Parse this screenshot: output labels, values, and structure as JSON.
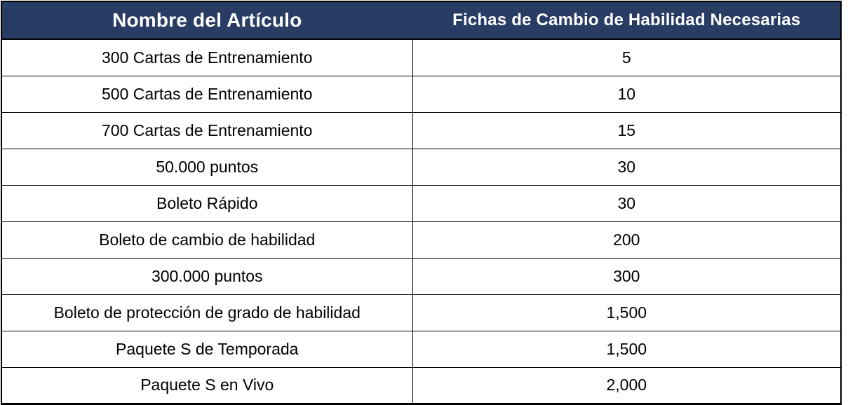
{
  "table": {
    "header": {
      "item_label": "Nombre del Artículo",
      "tokens_label": "Fichas de Cambio de Habilidad Necesarias"
    },
    "rows": [
      {
        "item": "300 Cartas de Entrenamiento",
        "tokens": "5"
      },
      {
        "item": "500 Cartas de Entrenamiento",
        "tokens": "10"
      },
      {
        "item": "700 Cartas de Entrenamiento",
        "tokens": "15"
      },
      {
        "item": "50.000 puntos",
        "tokens": "30"
      },
      {
        "item": "Boleto Rápido",
        "tokens": "30"
      },
      {
        "item": "Boleto de cambio de habilidad",
        "tokens": "200"
      },
      {
        "item": "300.000 puntos",
        "tokens": "300"
      },
      {
        "item": "Boleto de protección de grado de habilidad",
        "tokens": "1,500"
      },
      {
        "item": "Paquete S de Temporada",
        "tokens": "1,500"
      },
      {
        "item": "Paquete S en Vivo",
        "tokens": "2,000"
      }
    ]
  },
  "colors": {
    "header_bg": "#283C64",
    "header_text": "#FFFFFF",
    "body_text": "#000000",
    "border": "#000000"
  }
}
